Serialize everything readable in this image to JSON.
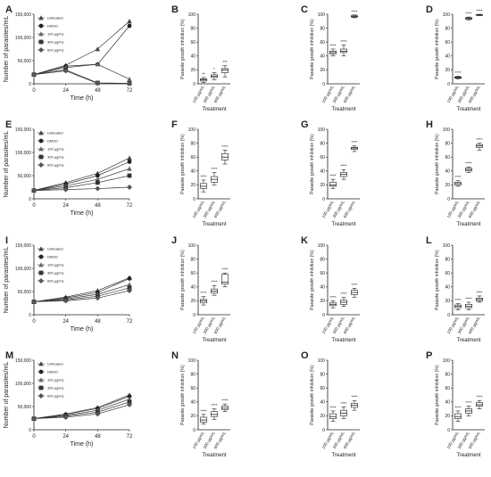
{
  "figure": {
    "rows": [
      {
        "line": {
          "letter": "A",
          "ylabel": "Number of parasites/mL",
          "xlabel": "Time (h)",
          "yticks": [
            "150,000",
            "100,000",
            "50,000",
            "0"
          ],
          "xticks": [
            "0",
            "24",
            "48",
            "72"
          ],
          "legend": [
            "Untreated",
            "DMSO",
            "100 μg/mL",
            "300 μg/mL",
            "600 μg/mL"
          ]
        },
        "boxes": [
          {
            "letter": "B",
            "ylim": [
              0,
              100
            ]
          },
          {
            "letter": "C",
            "ylim": [
              0,
              100
            ]
          },
          {
            "letter": "D",
            "ylim": [
              0,
              100
            ]
          }
        ]
      },
      {
        "line": {
          "letter": "E",
          "ylabel": "Number of parasites/mL",
          "xlabel": "Time (h)",
          "yticks": [
            "150,000",
            "100,000",
            "50,000",
            "0"
          ],
          "xticks": [
            "0",
            "24",
            "48",
            "72"
          ],
          "legend": [
            "Untreated",
            "DMSO",
            "100 μg/mL",
            "300 μg/mL",
            "600 μg/mL"
          ]
        },
        "boxes": [
          {
            "letter": "F",
            "ylim": [
              0,
              100
            ]
          },
          {
            "letter": "G",
            "ylim": [
              0,
              100
            ]
          },
          {
            "letter": "H",
            "ylim": [
              0,
              100
            ]
          }
        ]
      },
      {
        "line": {
          "letter": "I",
          "ylabel": "Number of parasites/mL",
          "xlabel": "Time (h)",
          "yticks": [
            "150,000",
            "100,000",
            "50,000",
            "0"
          ],
          "xticks": [
            "0",
            "24",
            "48",
            "72"
          ],
          "legend": [
            "Untreated",
            "DMSO",
            "100 μg/mL",
            "300 μg/mL",
            "600 μg/mL"
          ]
        },
        "boxes": [
          {
            "letter": "J",
            "ylim": [
              0,
              100
            ]
          },
          {
            "letter": "K",
            "ylim": [
              0,
              100
            ]
          },
          {
            "letter": "L",
            "ylim": [
              0,
              100
            ]
          }
        ]
      },
      {
        "line": {
          "letter": "M",
          "ylabel": "Number of parasites/mL",
          "xlabel": "Time (h)",
          "yticks": [
            "150,000",
            "100,000",
            "50,000",
            "0"
          ],
          "xticks": [
            "0",
            "24",
            "48",
            "72"
          ],
          "legend": [
            "Untreated",
            "DMSO",
            "100 μg/mL",
            "300 μg/mL",
            "600 μg/mL"
          ]
        },
        "boxes": [
          {
            "letter": "N",
            "ylim": [
              0,
              100
            ]
          },
          {
            "letter": "O",
            "ylim": [
              0,
              100
            ]
          },
          {
            "letter": "P",
            "ylim": [
              0,
              100
            ]
          }
        ]
      }
    ],
    "box_common": {
      "ylabel": "Parasite growth inhibition (%)",
      "xlabel": "Treatment",
      "categories": [
        "100 μg/mL",
        "300 μg/mL",
        "600 μg/mL"
      ],
      "yticks": [
        "0",
        "20",
        "40",
        "60",
        "80",
        "100"
      ]
    }
  },
  "chart_data": [
    {
      "panel": "A",
      "type": "line",
      "x": [
        0,
        24,
        48,
        72
      ],
      "ylim": [
        0,
        150000
      ],
      "series": [
        {
          "name": "Untreated",
          "values": [
            20000,
            40000,
            75000,
            135000
          ]
        },
        {
          "name": "DMSO",
          "values": [
            20000,
            38000,
            42000,
            125000
          ]
        },
        {
          "name": "100 μg/mL",
          "values": [
            20000,
            35000,
            42000,
            10000
          ]
        },
        {
          "name": "300 μg/mL",
          "values": [
            20000,
            30000,
            2000,
            1000
          ]
        },
        {
          "name": "600 μg/mL",
          "values": [
            20000,
            28000,
            1000,
            500
          ]
        }
      ]
    },
    {
      "panel": "B",
      "type": "box",
      "ylim": [
        0,
        100
      ],
      "categories": [
        "100 μg/mL",
        "300 μg/mL",
        "600 μg/mL"
      ],
      "boxes": [
        {
          "min": 2,
          "q1": 4,
          "median": 6,
          "q3": 7,
          "max": 9,
          "stars": "**"
        },
        {
          "min": 6,
          "q1": 9,
          "median": 11,
          "q3": 13,
          "max": 16,
          "stars": "*"
        },
        {
          "min": 10,
          "q1": 16,
          "median": 20,
          "q3": 22,
          "max": 26,
          "stars": "***"
        }
      ]
    },
    {
      "panel": "C",
      "type": "box",
      "ylim": [
        0,
        100
      ],
      "categories": [
        "100 μg/mL",
        "300 μg/mL",
        "600 μg/mL"
      ],
      "boxes": [
        {
          "min": 40,
          "q1": 43,
          "median": 45,
          "q3": 47,
          "max": 50,
          "stars": "****"
        },
        {
          "min": 40,
          "q1": 45,
          "median": 47,
          "q3": 50,
          "max": 56,
          "stars": "****"
        },
        {
          "min": 95,
          "q1": 96,
          "median": 97,
          "q3": 98,
          "max": 99,
          "stars": "****"
        }
      ]
    },
    {
      "panel": "D",
      "type": "box",
      "ylim": [
        0,
        100
      ],
      "categories": [
        "100 μg/mL",
        "300 μg/mL",
        "600 μg/mL"
      ],
      "boxes": [
        {
          "min": 7,
          "q1": 8,
          "median": 9,
          "q3": 10,
          "max": 11,
          "stars": "****"
        },
        {
          "min": 92,
          "q1": 93,
          "median": 94,
          "q3": 95,
          "max": 96,
          "stars": "****"
        },
        {
          "min": 98,
          "q1": 98.5,
          "median": 99,
          "q3": 99.5,
          "max": 100,
          "stars": "****"
        }
      ]
    },
    {
      "panel": "E",
      "type": "line",
      "x": [
        0,
        24,
        48,
        72
      ],
      "ylim": [
        0,
        150000
      ],
      "series": [
        {
          "name": "Untreated",
          "values": [
            18000,
            35000,
            55000,
            88000
          ]
        },
        {
          "name": "DMSO",
          "values": [
            18000,
            32000,
            50000,
            80000
          ]
        },
        {
          "name": "100 μg/mL",
          "values": [
            18000,
            28000,
            42000,
            65000
          ]
        },
        {
          "name": "300 μg/mL",
          "values": [
            18000,
            24000,
            35000,
            50000
          ]
        },
        {
          "name": "600 μg/mL",
          "values": [
            18000,
            20000,
            22000,
            25000
          ]
        }
      ]
    },
    {
      "panel": "F",
      "type": "box",
      "ylim": [
        0,
        100
      ],
      "categories": [
        "100 μg/mL",
        "300 μg/mL",
        "600 μg/mL"
      ],
      "boxes": [
        {
          "min": 10,
          "q1": 15,
          "median": 18,
          "q3": 22,
          "max": 27,
          "stars": "****"
        },
        {
          "min": 20,
          "q1": 24,
          "median": 28,
          "q3": 32,
          "max": 38,
          "stars": "****"
        },
        {
          "min": 50,
          "q1": 56,
          "median": 60,
          "q3": 65,
          "max": 70,
          "stars": "****"
        }
      ]
    },
    {
      "panel": "G",
      "type": "box",
      "ylim": [
        0,
        100
      ],
      "categories": [
        "100 μg/mL",
        "300 μg/mL",
        "600 μg/mL"
      ],
      "boxes": [
        {
          "min": 15,
          "q1": 18,
          "median": 20,
          "q3": 24,
          "max": 28,
          "stars": "****"
        },
        {
          "min": 28,
          "q1": 32,
          "median": 35,
          "q3": 38,
          "max": 42,
          "stars": "****"
        },
        {
          "min": 68,
          "q1": 71,
          "median": 73,
          "q3": 74,
          "max": 76,
          "stars": "****"
        }
      ]
    },
    {
      "panel": "H",
      "type": "box",
      "ylim": [
        0,
        100
      ],
      "categories": [
        "100 μg/mL",
        "300 μg/mL",
        "600 μg/mL"
      ],
      "boxes": [
        {
          "min": 18,
          "q1": 20,
          "median": 22,
          "q3": 24,
          "max": 26,
          "stars": "****"
        },
        {
          "min": 38,
          "q1": 40,
          "median": 42,
          "q3": 44,
          "max": 46,
          "stars": "****"
        },
        {
          "min": 70,
          "q1": 74,
          "median": 76,
          "q3": 78,
          "max": 80,
          "stars": "****"
        }
      ]
    },
    {
      "panel": "I",
      "type": "line",
      "x": [
        0,
        24,
        48,
        72
      ],
      "ylim": [
        0,
        150000
      ],
      "series": [
        {
          "name": "Untreated",
          "values": [
            28000,
            38000,
            52000,
            80000
          ]
        },
        {
          "name": "DMSO",
          "values": [
            28000,
            36000,
            48000,
            78000
          ]
        },
        {
          "name": "100 μg/mL",
          "values": [
            28000,
            34000,
            44000,
            65000
          ]
        },
        {
          "name": "300 μg/mL",
          "values": [
            28000,
            32000,
            40000,
            58000
          ]
        },
        {
          "name": "600 μg/mL",
          "values": [
            28000,
            30000,
            36000,
            52000
          ]
        }
      ]
    },
    {
      "panel": "J",
      "type": "box",
      "ylim": [
        0,
        100
      ],
      "categories": [
        "100 μg/mL",
        "300 μg/mL",
        "600 μg/mL"
      ],
      "boxes": [
        {
          "min": 14,
          "q1": 17,
          "median": 20,
          "q3": 22,
          "max": 26,
          "stars": "****"
        },
        {
          "min": 28,
          "q1": 31,
          "median": 34,
          "q3": 37,
          "max": 42,
          "stars": "****"
        },
        {
          "min": 40,
          "q1": 44,
          "median": 47,
          "q3": 58,
          "max": 60,
          "stars": "****"
        }
      ]
    },
    {
      "panel": "K",
      "type": "box",
      "ylim": [
        0,
        100
      ],
      "categories": [
        "100 μg/mL",
        "300 μg/mL",
        "600 μg/mL"
      ],
      "boxes": [
        {
          "min": 10,
          "q1": 13,
          "median": 15,
          "q3": 17,
          "max": 20,
          "stars": "****"
        },
        {
          "min": 12,
          "q1": 15,
          "median": 18,
          "q3": 21,
          "max": 25,
          "stars": "****"
        },
        {
          "min": 25,
          "q1": 29,
          "median": 32,
          "q3": 35,
          "max": 38,
          "stars": "****"
        }
      ]
    },
    {
      "panel": "L",
      "type": "box",
      "ylim": [
        0,
        100
      ],
      "categories": [
        "100 μg/mL",
        "300 μg/mL",
        "600 μg/mL"
      ],
      "boxes": [
        {
          "min": 7,
          "q1": 10,
          "median": 12,
          "q3": 14,
          "max": 16,
          "stars": "****"
        },
        {
          "min": 7,
          "q1": 10,
          "median": 12,
          "q3": 15,
          "max": 18,
          "stars": "****"
        },
        {
          "min": 18,
          "q1": 20,
          "median": 22,
          "q3": 24,
          "max": 27,
          "stars": "****"
        }
      ]
    },
    {
      "panel": "M",
      "type": "line",
      "x": [
        0,
        24,
        48,
        72
      ],
      "ylim": [
        0,
        150000
      ],
      "series": [
        {
          "name": "Untreated",
          "values": [
            24000,
            34000,
            48000,
            75000
          ]
        },
        {
          "name": "DMSO",
          "values": [
            24000,
            33000,
            46000,
            72000
          ]
        },
        {
          "name": "100 μg/mL",
          "values": [
            24000,
            31000,
            42000,
            66000
          ]
        },
        {
          "name": "300 μg/mL",
          "values": [
            24000,
            29000,
            38000,
            60000
          ]
        },
        {
          "name": "600 μg/mL",
          "values": [
            24000,
            27000,
            34000,
            54000
          ]
        }
      ]
    },
    {
      "panel": "N",
      "type": "box",
      "ylim": [
        0,
        100
      ],
      "categories": [
        "100 μg/mL",
        "300 μg/mL",
        "600 μg/mL"
      ],
      "boxes": [
        {
          "min": 8,
          "q1": 11,
          "median": 14,
          "q3": 18,
          "max": 22,
          "stars": "****"
        },
        {
          "min": 15,
          "q1": 19,
          "median": 22,
          "q3": 26,
          "max": 30,
          "stars": "****"
        },
        {
          "min": 26,
          "q1": 29,
          "median": 31,
          "q3": 34,
          "max": 37,
          "stars": "****"
        }
      ]
    },
    {
      "panel": "O",
      "type": "box",
      "ylim": [
        0,
        100
      ],
      "categories": [
        "100 μg/mL",
        "300 μg/mL",
        "600 μg/mL"
      ],
      "boxes": [
        {
          "min": 12,
          "q1": 16,
          "median": 19,
          "q3": 23,
          "max": 27,
          "stars": "****"
        },
        {
          "min": 16,
          "q1": 20,
          "median": 24,
          "q3": 28,
          "max": 33,
          "stars": "****"
        },
        {
          "min": 28,
          "q1": 32,
          "median": 35,
          "q3": 38,
          "max": 42,
          "stars": "****"
        }
      ]
    },
    {
      "panel": "P",
      "type": "box",
      "ylim": [
        0,
        100
      ],
      "categories": [
        "100 μg/mL",
        "300 μg/mL",
        "600 μg/mL"
      ],
      "boxes": [
        {
          "min": 12,
          "q1": 16,
          "median": 19,
          "q3": 23,
          "max": 27,
          "stars": "****"
        },
        {
          "min": 20,
          "q1": 24,
          "median": 27,
          "q3": 30,
          "max": 34,
          "stars": "****"
        },
        {
          "min": 30,
          "q1": 34,
          "median": 36,
          "q3": 39,
          "max": 42,
          "stars": "****"
        }
      ]
    }
  ]
}
